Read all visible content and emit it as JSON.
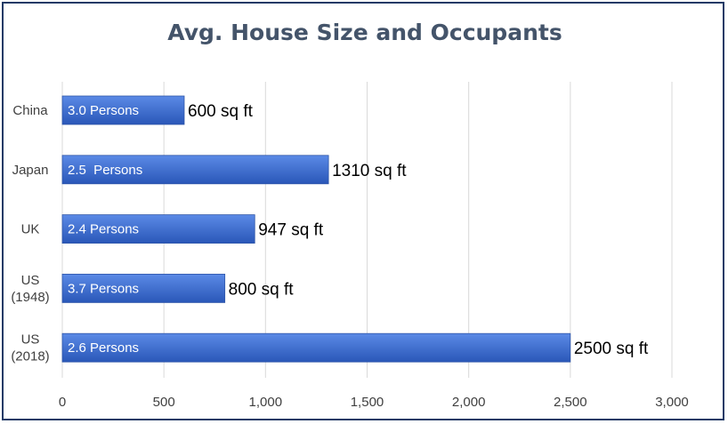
{
  "chart_data": {
    "type": "bar",
    "orientation": "horizontal",
    "title": "Avg. House Size and Occupants",
    "xlabel": "",
    "ylabel": "",
    "categories": [
      [
        "China"
      ],
      [
        "Japan"
      ],
      [
        "UK"
      ],
      [
        "US",
        "(1948)"
      ],
      [
        "US",
        "(2018)"
      ]
    ],
    "values": [
      600,
      1310,
      947,
      800,
      2500
    ],
    "bar_labels": [
      "3.0 Persons",
      "2.5  Persons",
      "2.4 Persons",
      "3.7 Persons",
      "2.6 Persons"
    ],
    "value_labels": [
      "600 sq ft",
      "1310 sq ft",
      "947 sq ft",
      "800 sq ft",
      "2500 sq ft"
    ],
    "xlim": [
      0,
      3000
    ],
    "xticks": [
      0,
      500,
      1000,
      1500,
      2000,
      2500,
      3000
    ],
    "xtick_labels": [
      "0",
      "500",
      "1,000",
      "1,500",
      "2,000",
      "2,500",
      "3,000"
    ],
    "grid": "vertical",
    "legend": "none",
    "colors": {
      "bar_top": "#5b8ae6",
      "bar_bottom": "#2a57b8",
      "bar_edge": "#2f56a8",
      "grid": "#d9d9d9",
      "title": "#44546a",
      "frame": "#1f3a66"
    }
  }
}
